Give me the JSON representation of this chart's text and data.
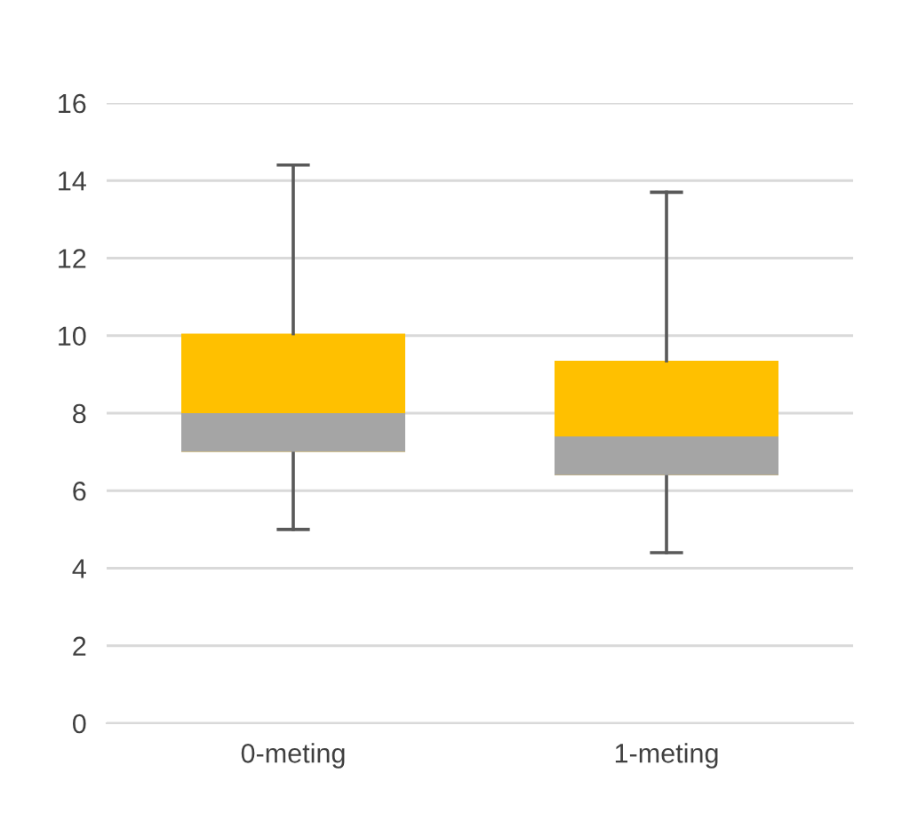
{
  "chart_data": {
    "type": "box",
    "categories": [
      "0-meting",
      "1-meting"
    ],
    "boxes": [
      {
        "low": 5.0,
        "q1": 7.0,
        "median": 8.0,
        "q3": 10.05,
        "high": 14.4
      },
      {
        "low": 4.4,
        "q1": 6.4,
        "median": 7.4,
        "q3": 9.35,
        "high": 13.7
      }
    ],
    "colors": [
      "#a5a5a5",
      "#ffc000"
    ],
    "ylim": [
      0,
      16
    ],
    "yticks": [
      0,
      2,
      4,
      6,
      8,
      10,
      12,
      14,
      16
    ],
    "grid": "y",
    "legend": false
  }
}
